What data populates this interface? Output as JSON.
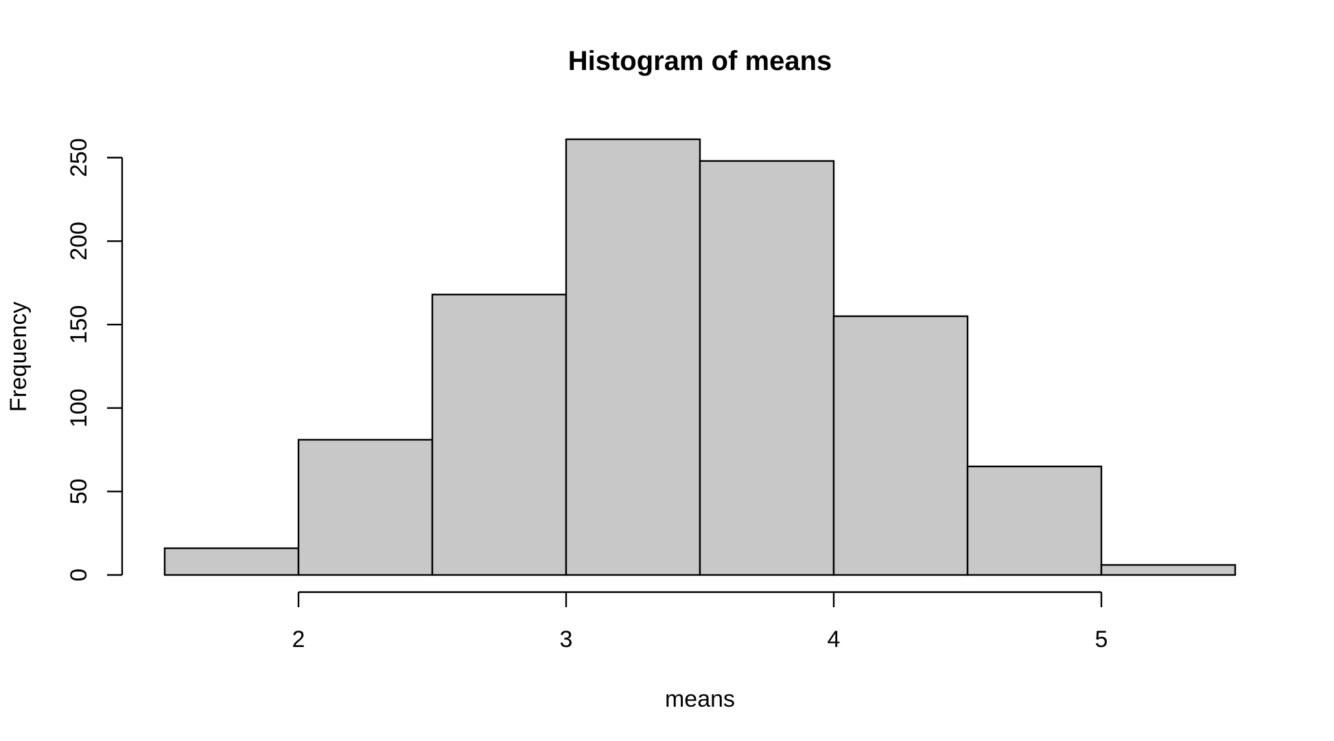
{
  "chart_data": {
    "type": "bar",
    "title": "Histogram of means",
    "xlabel": "means",
    "ylabel": "Frequency",
    "bins": [
      {
        "x0": 1.5,
        "x1": 2.0,
        "count": 16
      },
      {
        "x0": 2.0,
        "x1": 2.5,
        "count": 81
      },
      {
        "x0": 2.5,
        "x1": 3.0,
        "count": 168
      },
      {
        "x0": 3.0,
        "x1": 3.5,
        "count": 261
      },
      {
        "x0": 3.5,
        "x1": 4.0,
        "count": 248
      },
      {
        "x0": 4.0,
        "x1": 4.5,
        "count": 155
      },
      {
        "x0": 4.5,
        "x1": 5.0,
        "count": 65
      },
      {
        "x0": 5.0,
        "x1": 5.5,
        "count": 6
      }
    ],
    "xticks": [
      2,
      3,
      4,
      5
    ],
    "yticks": [
      0,
      50,
      100,
      150,
      200,
      250
    ],
    "xlim": [
      1.5,
      5.5
    ],
    "ylim": [
      0,
      261
    ],
    "bar_color": "#c8c8c8",
    "edge_color": "#000000",
    "grid": false,
    "legend": "none"
  }
}
